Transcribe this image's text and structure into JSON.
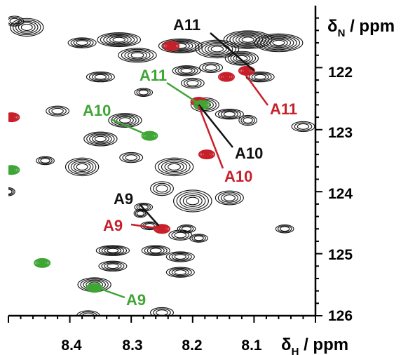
{
  "chart_data": {
    "type": "scatter",
    "x_axis": {
      "label_main": "δ",
      "label_sub": "H",
      "label_rest": " / ppm",
      "range": [
        8.5,
        8.0
      ],
      "ticks": [
        "8.4",
        "8.3",
        "8.2",
        "8.1"
      ],
      "tick_values": [
        8.4,
        8.3,
        8.2,
        8.1
      ],
      "minor_step": 0.02
    },
    "y_axis": {
      "label_main": "δ",
      "label_sub": "N",
      "label_rest": " / ppm",
      "range": [
        121.0,
        126.0
      ],
      "ticks": [
        "122",
        "123",
        "124",
        "125",
        "126"
      ],
      "tick_values": [
        122,
        123,
        124,
        125,
        126
      ],
      "minor_step": 0.2
    },
    "colors": {
      "black": "#111111",
      "red": "#c8202a",
      "green": "#3fa535"
    },
    "series": [
      {
        "color": "red",
        "peaks": [
          {
            "x": 8.235,
            "y": 121.65,
            "label": "A11"
          },
          {
            "x": 8.112,
            "y": 122.05,
            "label": "A11"
          },
          {
            "x": 8.145,
            "y": 122.15,
            "label": "A11"
          },
          {
            "x": 8.19,
            "y": 122.55,
            "label": "A10"
          },
          {
            "x": 8.177,
            "y": 123.4,
            "label": "A10"
          },
          {
            "x": 8.25,
            "y": 124.6,
            "label": "A9"
          },
          {
            "x": 8.495,
            "y": 122.8,
            "label": ""
          }
        ]
      },
      {
        "color": "green",
        "peaks": [
          {
            "x": 8.185,
            "y": 122.6,
            "label": "A11"
          },
          {
            "x": 8.27,
            "y": 123.1,
            "label": "A10"
          },
          {
            "x": 8.36,
            "y": 125.55,
            "label": "A9"
          },
          {
            "x": 8.445,
            "y": 125.15,
            "label": ""
          },
          {
            "x": 8.495,
            "y": 123.65,
            "label": ""
          }
        ]
      }
    ],
    "annotations": [
      {
        "text": "A11",
        "color": "black"
      },
      {
        "text": "A10",
        "color": "black"
      },
      {
        "text": "A9",
        "color": "black"
      },
      {
        "text": "A11",
        "color": "green"
      },
      {
        "text": "A10",
        "color": "green"
      },
      {
        "text": "A9",
        "color": "green"
      },
      {
        "text": "A11",
        "color": "red"
      },
      {
        "text": "A10",
        "color": "red"
      },
      {
        "text": "A9",
        "color": "red"
      }
    ],
    "grid": false
  }
}
